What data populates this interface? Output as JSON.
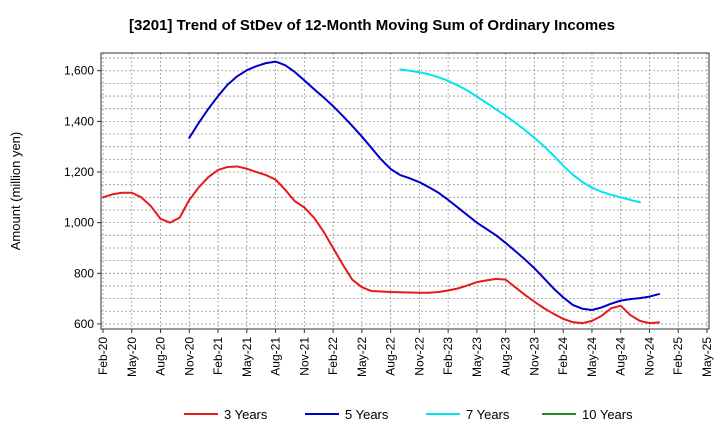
{
  "chart_data": {
    "type": "line",
    "title": "[3201]  Trend of StDev of 12-Month Moving Sum of Ordinary Incomes",
    "ylabel": "Amount (million yen)",
    "xlabel": "",
    "ylim": [
      580,
      1670
    ],
    "yticks": [
      600,
      800,
      1000,
      1200,
      1400,
      1600
    ],
    "ytick_labels": [
      "600",
      "800",
      "1,000",
      "1,200",
      "1,400",
      "1,600"
    ],
    "x_start": "Feb-20",
    "x_tick_labels": [
      "Feb-20",
      "May-20",
      "Aug-20",
      "Nov-20",
      "Feb-21",
      "May-21",
      "Aug-21",
      "Nov-21",
      "Feb-22",
      "May-22",
      "Aug-22",
      "Nov-22",
      "Feb-23",
      "May-23",
      "Aug-23",
      "Nov-23",
      "Feb-24",
      "May-24",
      "Aug-24",
      "Nov-24",
      "Feb-25",
      "May-25"
    ],
    "grid": true,
    "legend_position": "bottom",
    "series": [
      {
        "name": "3 Years",
        "color": "#e41a1c",
        "start": "Feb-20",
        "values": [
          1100,
          1112,
          1118,
          1118,
          1100,
          1065,
          1015,
          1000,
          1020,
          1090,
          1140,
          1180,
          1208,
          1220,
          1222,
          1213,
          1200,
          1188,
          1170,
          1130,
          1085,
          1060,
          1020,
          965,
          900,
          835,
          775,
          745,
          730,
          728,
          726,
          725,
          724,
          723,
          723,
          726,
          732,
          740,
          752,
          765,
          772,
          778,
          775,
          745,
          715,
          688,
          662,
          640,
          620,
          607,
          603,
          612,
          632,
          662,
          672,
          635,
          612,
          603,
          606
        ]
      },
      {
        "name": "5 Years",
        "color": "#0000cd",
        "start": "Feb-20",
        "values": [
          null,
          null,
          null,
          null,
          null,
          null,
          null,
          null,
          null,
          1335,
          1395,
          1450,
          1500,
          1545,
          1578,
          1602,
          1618,
          1630,
          1636,
          1622,
          1595,
          1562,
          1528,
          1495,
          1460,
          1422,
          1382,
          1340,
          1295,
          1250,
          1212,
          1188,
          1175,
          1160,
          1140,
          1118,
          1090,
          1060,
          1030,
          1000,
          975,
          950,
          920,
          888,
          855,
          820,
          780,
          740,
          705,
          675,
          660,
          655,
          665,
          680,
          692,
          698,
          702,
          708,
          718
        ]
      },
      {
        "name": "7 Years",
        "color": "#00e5ee",
        "start": "Feb-20",
        "values": [
          null,
          null,
          null,
          null,
          null,
          null,
          null,
          null,
          null,
          null,
          null,
          null,
          null,
          null,
          null,
          null,
          null,
          null,
          null,
          null,
          null,
          null,
          null,
          null,
          null,
          null,
          null,
          null,
          null,
          null,
          null,
          1605,
          1600,
          1594,
          1586,
          1574,
          1560,
          1542,
          1522,
          1498,
          1473,
          1447,
          1422,
          1395,
          1366,
          1335,
          1302,
          1265,
          1225,
          1190,
          1160,
          1138,
          1122,
          1110,
          1100,
          1090,
          1080
        ]
      },
      {
        "name": "10 Years",
        "color": "#228b22",
        "start": "Feb-20",
        "values": []
      }
    ]
  }
}
